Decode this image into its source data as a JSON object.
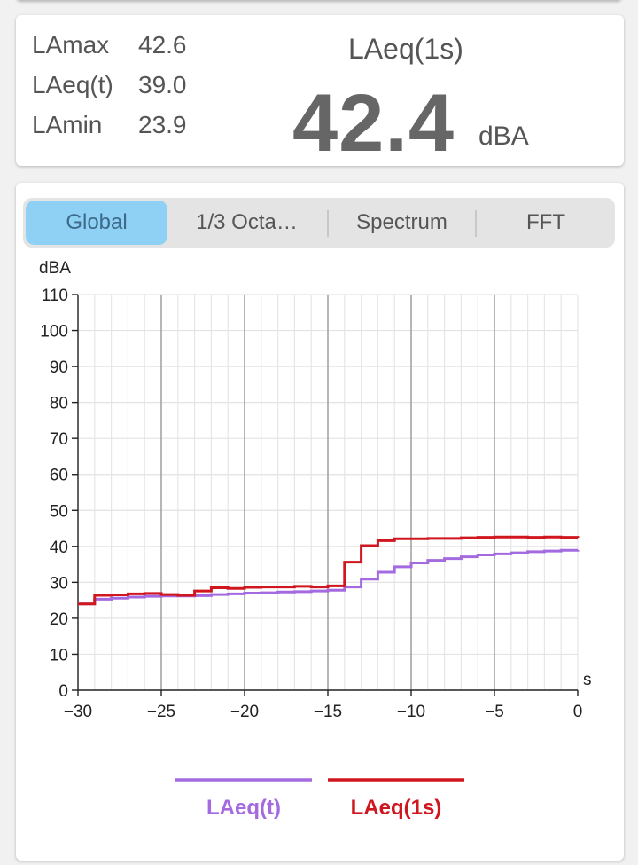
{
  "stats": {
    "items": [
      {
        "label": "LAmax",
        "value": "42.6"
      },
      {
        "label": "LAeq(t)",
        "value": "39.0"
      },
      {
        "label": "LAmin",
        "value": "23.9"
      }
    ],
    "big_label": "LAeq(1s)",
    "big_value": "42.4",
    "big_unit": "dBA"
  },
  "tabs": [
    {
      "label": "Global",
      "active": true
    },
    {
      "label": "1/3 Octa…",
      "active": false
    },
    {
      "label": "Spectrum",
      "active": false
    },
    {
      "label": "FFT",
      "active": false
    }
  ],
  "colors": {
    "laeq_t": "#a46be0",
    "laeq_1s": "#d0161e",
    "active_tab": "#8fd0f5"
  },
  "chart_data": {
    "type": "line",
    "title": "",
    "ylabel": "dBA",
    "xlabel": "s",
    "xlim": [
      -30,
      0
    ],
    "ylim": [
      0,
      110
    ],
    "x_ticks": [
      -30,
      -25,
      -20,
      -15,
      -10,
      -5,
      0
    ],
    "y_ticks": [
      0,
      10,
      20,
      30,
      40,
      50,
      60,
      70,
      80,
      90,
      100,
      110
    ],
    "grid": true,
    "legend_position": "bottom",
    "step": true,
    "series": [
      {
        "name": "LAeq(t)",
        "x": [
          -30,
          -29,
          -28,
          -27,
          -26,
          -25,
          -24,
          -23,
          -22,
          -21,
          -20,
          -19,
          -18,
          -17,
          -16,
          -15,
          -14,
          -13,
          -12,
          -11,
          -10,
          -9,
          -8,
          -7,
          -6,
          -5,
          -4,
          -3,
          -2,
          -1,
          0
        ],
        "values": [
          24.0,
          25.3,
          25.6,
          25.9,
          26.1,
          26.2,
          26.2,
          26.3,
          26.6,
          26.8,
          27.0,
          27.1,
          27.3,
          27.4,
          27.6,
          27.8,
          28.7,
          30.9,
          32.8,
          34.3,
          35.4,
          36.1,
          36.6,
          37.1,
          37.6,
          37.9,
          38.2,
          38.5,
          38.7,
          38.9,
          39.0
        ]
      },
      {
        "name": "LAeq(1s)",
        "x": [
          -30,
          -29,
          -28,
          -27,
          -26,
          -25,
          -24,
          -23,
          -22,
          -21,
          -20,
          -19,
          -18,
          -17,
          -16,
          -15,
          -14,
          -13,
          -12,
          -11,
          -10,
          -9,
          -8,
          -7,
          -6,
          -5,
          -4,
          -3,
          -2,
          -1,
          0
        ],
        "values": [
          24.0,
          26.4,
          26.5,
          26.8,
          26.9,
          26.6,
          26.4,
          27.6,
          28.5,
          28.3,
          28.6,
          28.7,
          28.7,
          28.9,
          28.7,
          29.0,
          35.6,
          40.2,
          41.6,
          42.1,
          42.1,
          42.2,
          42.2,
          42.4,
          42.5,
          42.6,
          42.6,
          42.5,
          42.6,
          42.5,
          42.4
        ]
      }
    ]
  }
}
